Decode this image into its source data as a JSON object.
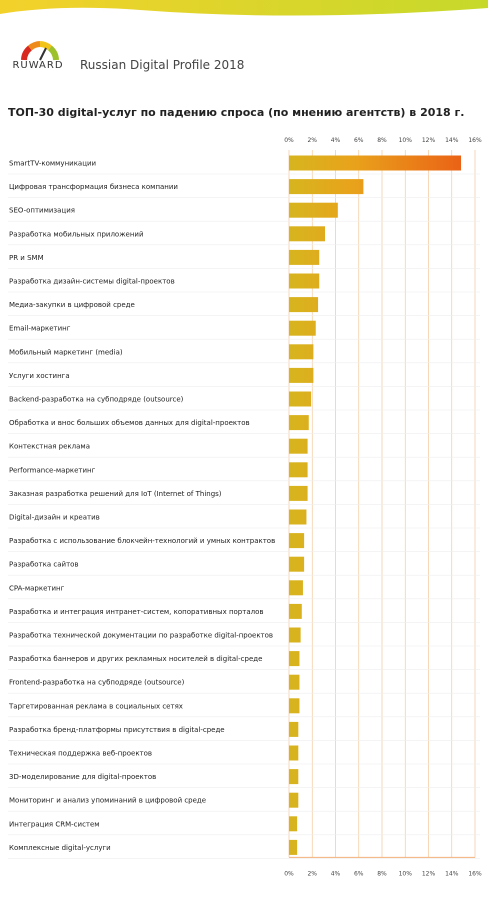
{
  "header": {
    "brand": "RUWARD",
    "subtitle": "Russian Digital Profile 2018"
  },
  "colors": {
    "band_start": "#f3d12b",
    "band_end": "#c6d92b",
    "bar_start": "#d6b51f",
    "bar_mid": "#e9a21b",
    "bar_end": "#ea5a15",
    "gauge_red": "#d9281e",
    "gauge_orange": "#ee8a1a",
    "gauge_yellow": "#f2c419",
    "gauge_green": "#9cc12a"
  },
  "chart_data": {
    "type": "bar",
    "orientation": "horizontal",
    "title": "ТОП-30 digital-услуг по падению спроса (по мнению агентств) в 2018 г.",
    "xlabel": "",
    "ylabel": "",
    "xlim": [
      0,
      16
    ],
    "ticks": [
      "0%",
      "2%",
      "4%",
      "6%",
      "8%",
      "10%",
      "12%",
      "14%",
      "16%"
    ],
    "grid": true,
    "categories": [
      "SmartTV-коммуникации",
      "Цифровая трансформация бизнеса компании",
      "SEO-оптимизация",
      "Разработка мобильных приложений",
      "PR и SMM",
      "Разработка дизайн-системы digital-проектов",
      "Медиа-закупки в цифровой среде",
      "Email-маркетинг",
      "Мобильный маркетинг (media)",
      "Услуги хостинга",
      "Backend-разработка на субподряде (outsource)",
      "Обработка и внос больших объемов данных для digital-проектов",
      "Контекстная реклама",
      "Performance-маркетинг",
      "Заказная разработка решений для IoT (Internet of Things)",
      "Digital-дизайн и креатив",
      "Разработка с использование блокчейн-технологий и умных контрактов",
      "Разработка сайтов",
      "CPA-маркетинг",
      "Разработка и интеграция интранет-систем, копоративных порталов",
      "Разработка технической документации по разработке digital-проектов",
      "Разработка баннеров и других рекламных носителей в digital-среде",
      "Frontend-разработка на субподряде (outsource)",
      "Таргетированная реклама в социальных сетях",
      "Разработка бренд-платформы присутствия в digital-среде",
      "Техническая поддержка веб-проектов",
      "3D-моделирование для digital-проектов",
      "Мониторинг и анализ упоминаний в цифровой среде",
      "Интеграция CRM-систем",
      "Комплексные digital-услуги"
    ],
    "values": [
      14.8,
      6.4,
      4.2,
      3.1,
      2.6,
      2.6,
      2.5,
      2.3,
      2.1,
      2.1,
      1.9,
      1.7,
      1.6,
      1.6,
      1.6,
      1.5,
      1.3,
      1.3,
      1.2,
      1.1,
      1.0,
      0.9,
      0.9,
      0.9,
      0.8,
      0.8,
      0.8,
      0.8,
      0.7,
      0.7
    ]
  }
}
